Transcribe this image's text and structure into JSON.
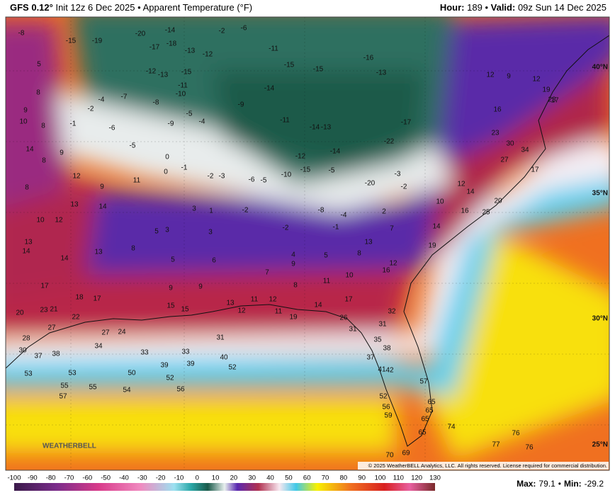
{
  "header": {
    "model": "GFS 0.12°",
    "init": "Init 12z 6 Dec 2025",
    "separator": "•",
    "product": "Apparent Temperature (°F)",
    "hour_label": "Hour:",
    "hour": 189,
    "valid_label": "Valid:",
    "valid": "09z Sun 14 Dec 2025"
  },
  "map": {
    "latitude_labels": [
      "40°N",
      "35°N",
      "30°N",
      "25°N"
    ],
    "copyright": "© 2025 WeatherBELL Analytics, LLC. All rights reserved. License required for commercial distribution.",
    "logo": "WEATHERBELL",
    "temperature_labels": [
      -8,
      -15,
      -19,
      -20,
      -14,
      -18,
      -17,
      -13,
      -12,
      -15,
      -12,
      -13,
      -11,
      -10,
      -8,
      -5,
      -9,
      -4,
      -2,
      -6,
      -11,
      -15,
      -14,
      -9,
      -11,
      -14,
      -13,
      -15,
      -16,
      -13,
      -17,
      -22,
      -14,
      -12,
      -15,
      -20,
      -10,
      -5,
      -8,
      -4,
      -3,
      -2,
      -1,
      -2,
      -2,
      -5,
      -6,
      -2,
      -3,
      0,
      -1,
      0,
      -5,
      -6,
      -2,
      -1,
      -4,
      -7,
      9,
      10,
      8,
      5,
      8,
      14,
      9,
      8,
      12,
      9,
      11,
      8,
      13,
      14,
      10,
      12,
      13,
      14,
      14,
      13,
      17,
      18,
      17,
      20,
      23,
      21,
      22,
      28,
      27,
      30,
      37,
      38,
      34,
      33,
      33,
      27,
      24,
      3,
      1,
      3,
      5,
      3,
      8,
      5,
      6,
      9,
      9,
      15,
      15,
      13,
      12,
      11,
      12,
      11,
      19,
      14,
      17,
      26,
      31,
      32,
      31,
      35,
      38,
      37,
      41,
      42,
      57,
      52,
      56,
      59,
      65,
      65,
      65,
      65,
      74,
      76,
      77,
      76,
      70,
      69,
      31,
      40,
      52,
      39,
      39,
      52,
      56,
      50,
      53,
      53,
      55,
      55,
      57,
      54,
      12,
      9,
      12,
      16,
      23,
      30,
      34,
      27,
      17,
      19,
      23,
      16,
      25,
      20,
      10,
      19,
      14,
      16,
      12,
      8,
      11,
      10,
      9,
      7,
      8,
      4,
      5,
      13,
      7,
      2,
      12,
      14,
      17
    ]
  },
  "legend": {
    "ticks": [
      -100,
      -90,
      -80,
      -70,
      -60,
      -50,
      -40,
      -30,
      -20,
      -10,
      0,
      10,
      20,
      30,
      40,
      50,
      60,
      70,
      80,
      90,
      100,
      110,
      120,
      130
    ],
    "max_label": "Max:",
    "max": 79.1,
    "separator": "•",
    "min_label": "Min:",
    "min": -29.2
  }
}
